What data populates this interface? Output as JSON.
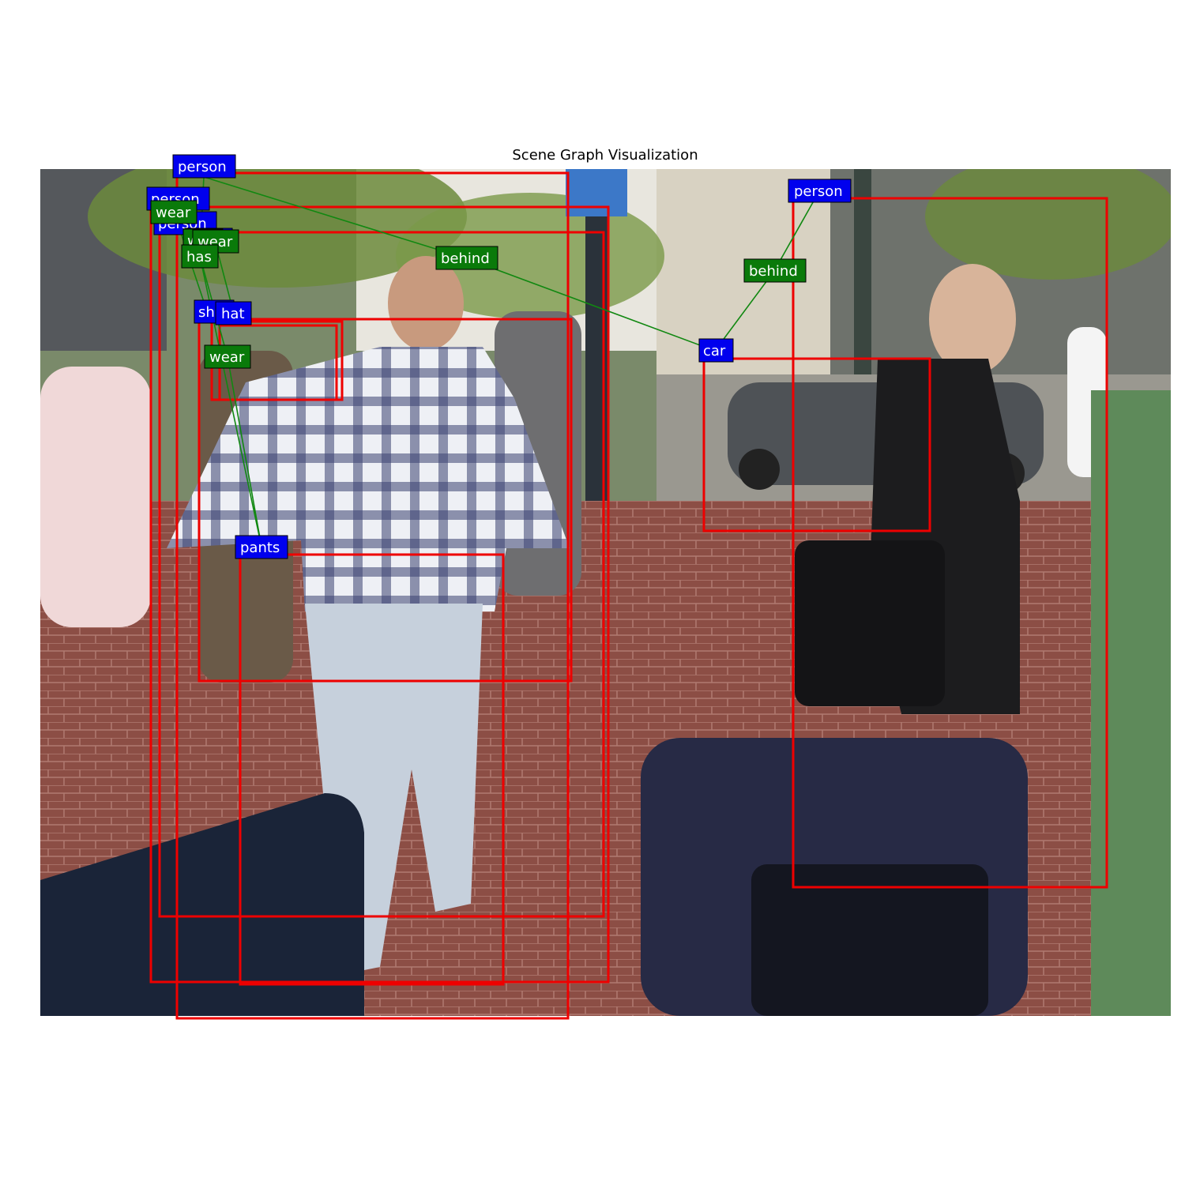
{
  "title": "Scene Graph Visualization",
  "colors": {
    "box": "#ee0000",
    "object_label_bg": "#0000ee",
    "relation_label_bg": "#0a7a0a",
    "edge": "#118811"
  },
  "objects": [
    {
      "id": "o1",
      "label": "person"
    },
    {
      "id": "o2",
      "label": "person"
    },
    {
      "id": "o3",
      "label": "person"
    },
    {
      "id": "o4",
      "label": "person"
    },
    {
      "id": "o5",
      "label": "person"
    },
    {
      "id": "o6",
      "label": "shirt"
    },
    {
      "id": "o7",
      "label": "hat"
    },
    {
      "id": "o8",
      "label": "pants"
    },
    {
      "id": "o9",
      "label": "car"
    }
  ],
  "relations": [
    {
      "id": "r1",
      "label": "wear"
    },
    {
      "id": "r2",
      "label": "wear"
    },
    {
      "id": "r3",
      "label": "wear"
    },
    {
      "id": "r4",
      "label": "has"
    },
    {
      "id": "r5",
      "label": "wear"
    },
    {
      "id": "r6",
      "label": "behind"
    },
    {
      "id": "r7",
      "label": "behind"
    }
  ]
}
